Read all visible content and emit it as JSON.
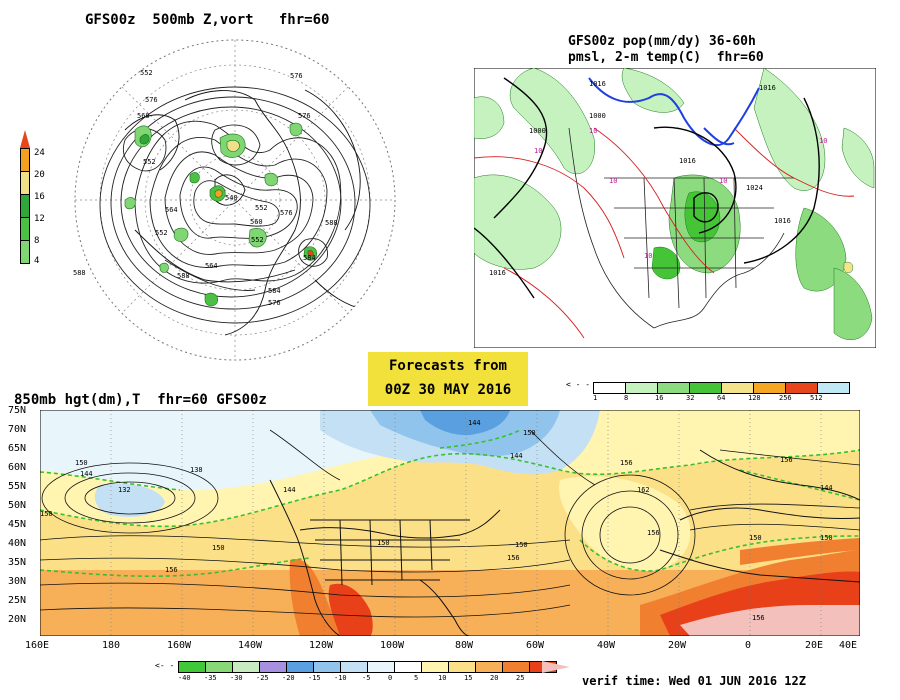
{
  "panel_tl": {
    "title": "GFS00z  500mb Z,vort   fhr=60",
    "legend": [
      "4",
      "8",
      "12",
      "16",
      "20",
      "24"
    ],
    "contours": [
      "552",
      "576",
      "576",
      "560",
      "588",
      "540",
      "552",
      "576",
      "588",
      "560",
      "584",
      "564",
      "552",
      "564",
      "552",
      "588",
      "584",
      "576",
      "552",
      "576"
    ]
  },
  "panel_tr": {
    "title_line1": "GFS00z pop(mm/dy) 36-60h",
    "title_line2": "pmsl, 2-m temp(C)  fhr=60",
    "isobars": [
      "1000",
      "1016",
      "1000",
      "1016",
      "1024",
      "1016",
      "1016",
      "1016"
    ],
    "temps": [
      "10",
      "10",
      "10",
      "10",
      "10",
      "10"
    ],
    "legend": [
      "1",
      "8",
      "16",
      "32",
      "64",
      "128",
      "256",
      "512"
    ],
    "legend_colors": [
      "#ffffff",
      "#c6f2c0",
      "#8cdc7f",
      "#45c437",
      "#f5e38c",
      "#f5a623",
      "#e8451d",
      "#c0e9f5"
    ]
  },
  "banner": {
    "line1": "Forecasts from",
    "line2": "00Z 30 MAY 2016"
  },
  "panel_bottom": {
    "title": "850mb hgt(dm),T  fhr=60 GFS00z",
    "lat_labels": [
      "75N",
      "70N",
      "65N",
      "60N",
      "55N",
      "50N",
      "45N",
      "40N",
      "35N",
      "30N",
      "25N",
      "20N"
    ],
    "lon_labels": [
      "160E",
      "180",
      "160W",
      "140W",
      "120W",
      "100W",
      "80W",
      "60W",
      "40W",
      "20W",
      "0",
      "20E",
      "40E"
    ],
    "contours": [
      "150",
      "144",
      "132",
      "138",
      "144",
      "150",
      "144",
      "150",
      "156",
      "144",
      "150",
      "162",
      "156",
      "150",
      "156",
      "150",
      "156",
      "150",
      "156",
      "156",
      "150",
      "144"
    ],
    "legend": [
      "-40",
      "-35",
      "-30",
      "-25",
      "-20",
      "-15",
      "-10",
      "-5",
      "0",
      "5",
      "10",
      "15",
      "20",
      "25"
    ],
    "legend_colors": [
      "#40c838",
      "#88d878",
      "#c8ecc0",
      "#a890e0",
      "#5aa0e0",
      "#90c4ec",
      "#c4e0f4",
      "#e8f6fc",
      "#ffffff",
      "#fff4b0",
      "#fce088",
      "#f8b058",
      "#f08030",
      "#e84018"
    ],
    "verif": "verif time: Wed 01 JUN 2016 12Z"
  },
  "colors": {
    "banner_bg": "#f2e13b",
    "tl_legend": [
      "#7fd673",
      "#4cc043",
      "#2fa839",
      "#f0e08a",
      "#f4a023",
      "#e8451d"
    ]
  }
}
